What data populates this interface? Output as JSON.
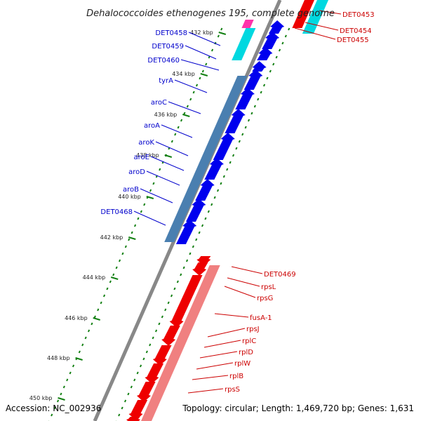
{
  "title": "Dehalococcoides ethenogenes 195, complete genome",
  "accession": "Accession: NC_002936",
  "topology": "Topology: circular; Length: 1,469,720 bp; Genes: 1,631",
  "colors": {
    "forward_gene": "#0000ee",
    "reverse_gene": "#ee0000",
    "forward_operon": "#4a7fb0",
    "reverse_operon": "#f08080",
    "cyan_gene": "#00d8e0",
    "magenta_gene": "#ff33aa",
    "tick": "#138013",
    "backbone": "#888888",
    "forward_label": "#0000cc",
    "reverse_label": "#cc0000"
  },
  "forward_genes": [
    "DET0458",
    "DET0459",
    "DET0460",
    "tyrA",
    "aroC",
    "aroA",
    "aroK",
    "aroE",
    "aroD",
    "aroB",
    "DET0468"
  ],
  "reverse_genes_top": [
    "DET0453",
    "DET0454",
    "DET0455"
  ],
  "reverse_genes": [
    "DET0469",
    "rpsL",
    "rpsG",
    "fusA-1",
    "rpsJ",
    "rplC",
    "rplD",
    "rplW",
    "rplB",
    "rpsS"
  ],
  "kbp_ticks": [
    "432 kbp",
    "434 kbp",
    "436 kbp",
    "438 kbp",
    "440 kbp",
    "442 kbp",
    "444 kbp",
    "446 kbp",
    "448 kbp",
    "450 kbp"
  ]
}
